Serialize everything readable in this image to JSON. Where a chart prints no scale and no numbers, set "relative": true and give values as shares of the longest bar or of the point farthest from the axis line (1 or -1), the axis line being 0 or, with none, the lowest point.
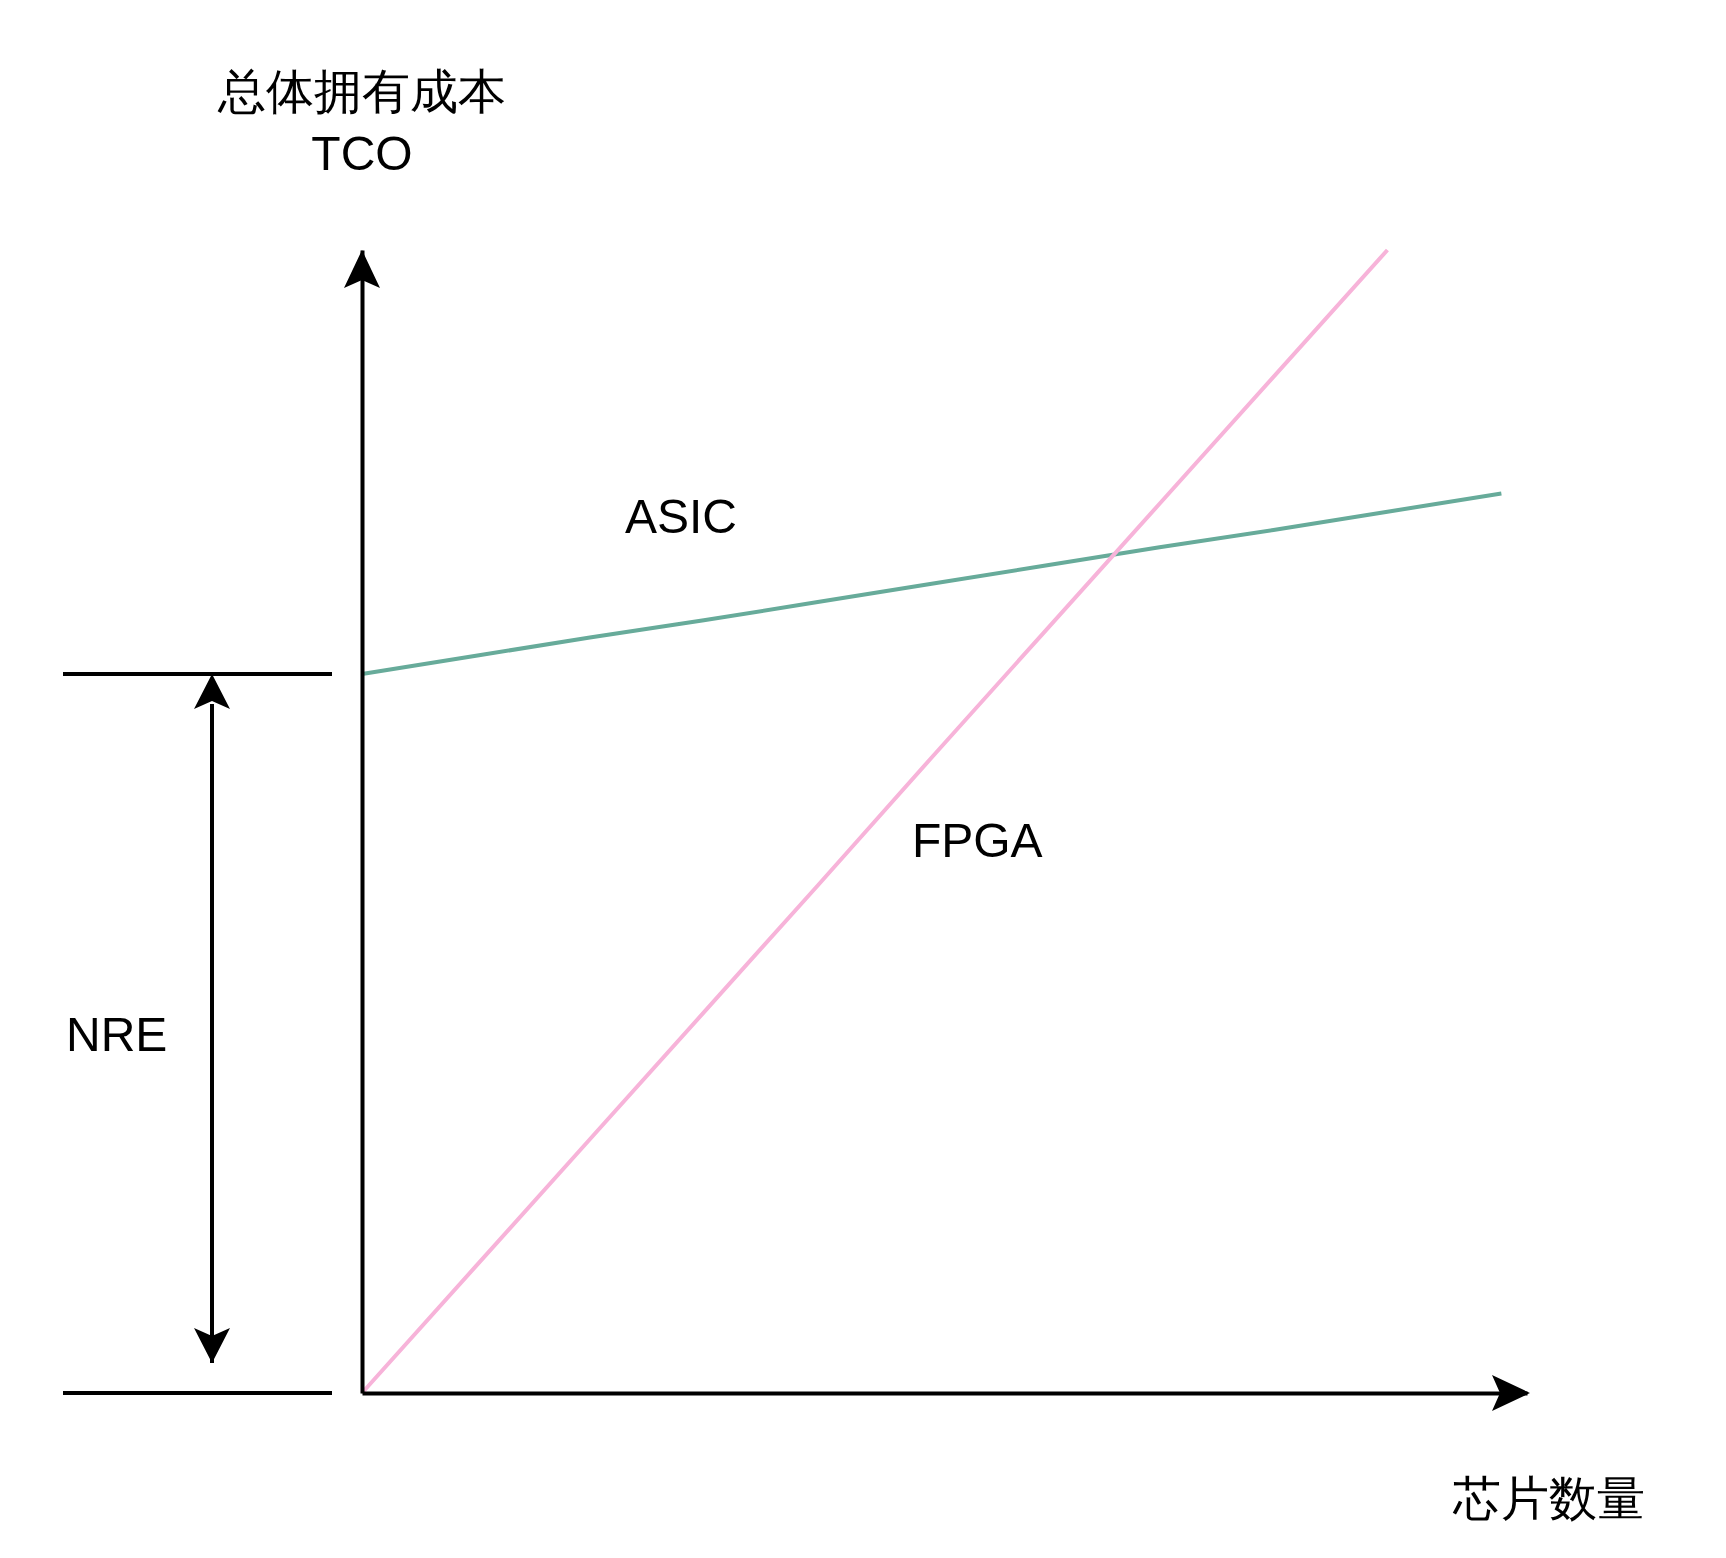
{
  "chart_data": {
    "type": "line",
    "relative": true,
    "xlabel": "芯片数量",
    "ylabel": "总体拥有成本\nTCO",
    "categories": [
      null,
      null,
      null,
      null,
      null,
      null,
      null,
      null,
      null,
      null,
      null
    ],
    "series": [
      {
        "name": "ASIC",
        "color": "#67ab9a",
        "values": [
          0.629,
          0.645,
          0.661,
          0.676,
          0.692,
          0.708,
          0.724,
          0.74,
          0.755,
          0.771,
          0.787
        ]
      },
      {
        "name": "FPGA",
        "color": "#f7b3d9",
        "values": [
          0,
          0.111,
          0.222,
          0.333,
          0.444,
          0.556,
          0.667,
          0.778,
          0.889,
          1,
          null
        ]
      }
    ],
    "annotations": [
      "NRE"
    ],
    "grid": false
  }
}
